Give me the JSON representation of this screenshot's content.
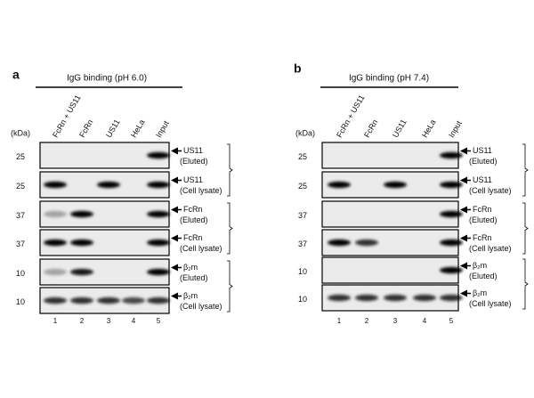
{
  "panels": [
    {
      "label": "a",
      "title": "IgG binding (pH 6.0)",
      "kda": "(kDa)",
      "lanes": [
        "FcRn + US11",
        "FcRn",
        "US11",
        "HeLa",
        "Input"
      ],
      "lane_numbers": [
        "1",
        "2",
        "3",
        "4",
        "5"
      ],
      "rows": [
        {
          "marker": "25",
          "label": "US11",
          "sublabel": "(Eluted)"
        },
        {
          "marker": "25",
          "label": "US11",
          "sublabel": "(Cell lysate)"
        },
        {
          "marker": "37",
          "label": "FcRn",
          "sublabel": "(Eluted)"
        },
        {
          "marker": "37",
          "label": "FcRn",
          "sublabel": "(Cell lysate)"
        },
        {
          "marker": "10",
          "label": "β₂m",
          "sublabel": "(Eluted)"
        },
        {
          "marker": "10",
          "label": "β₂m",
          "sublabel": "(Cell lysate)"
        }
      ]
    },
    {
      "label": "b",
      "title": "IgG binding (pH 7.4)",
      "kda": "(kDa)",
      "lanes": [
        "FcRn + US11",
        "FcRn",
        "US11",
        "HeLa",
        "Input"
      ],
      "lane_numbers": [
        "1",
        "2",
        "3",
        "4",
        "5"
      ],
      "rows": [
        {
          "marker": "25",
          "label": "US11",
          "sublabel": "(Eluted)"
        },
        {
          "marker": "25",
          "label": "US11",
          "sublabel": "(Cell lysate)"
        },
        {
          "marker": "37",
          "label": "FcRn",
          "sublabel": "(Eluted)"
        },
        {
          "marker": "37",
          "label": "FcRn",
          "sublabel": "(Cell lysate)"
        },
        {
          "marker": "10",
          "label": "β₂m",
          "sublabel": "(Eluted)"
        },
        {
          "marker": "10",
          "label": "β₂m",
          "sublabel": "(Cell lysate)"
        }
      ]
    }
  ]
}
